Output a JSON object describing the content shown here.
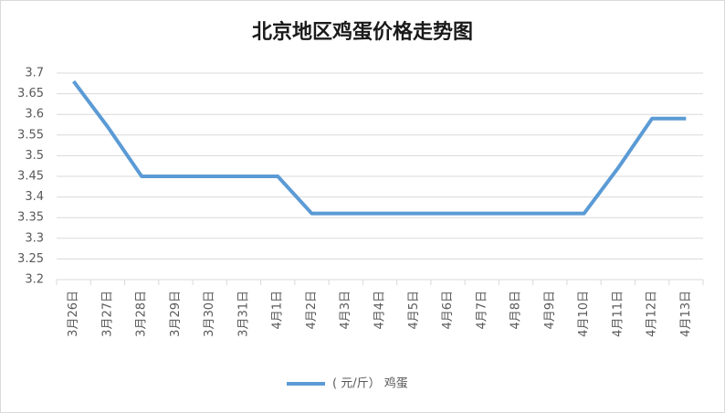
{
  "chart_data": {
    "type": "line",
    "title": "北京地区鸡蛋价格走势图",
    "categories": [
      "3月26日",
      "3月27日",
      "3月28日",
      "3月29日",
      "3月30日",
      "3月31日",
      "4月1日",
      "4月2日",
      "4月3日",
      "4月4日",
      "4月5日",
      "4月6日",
      "4月7日",
      "4月8日",
      "4月9日",
      "4月10日",
      "4月11日",
      "4月12日",
      "4月13日"
    ],
    "series": [
      {
        "name": "( 元/斤） 鸡蛋",
        "color": "#5b9bd5",
        "values": [
          3.68,
          3.57,
          3.45,
          3.45,
          3.45,
          3.45,
          3.45,
          3.36,
          3.36,
          3.36,
          3.36,
          3.36,
          3.36,
          3.36,
          3.36,
          3.36,
          3.47,
          3.59,
          3.59
        ]
      }
    ],
    "ylim": [
      3.2,
      3.7
    ],
    "yticks": [
      3.2,
      3.25,
      3.3,
      3.35,
      3.4,
      3.45,
      3.5,
      3.55,
      3.6,
      3.65,
      3.7
    ],
    "grid": true,
    "legend": "bottom"
  }
}
